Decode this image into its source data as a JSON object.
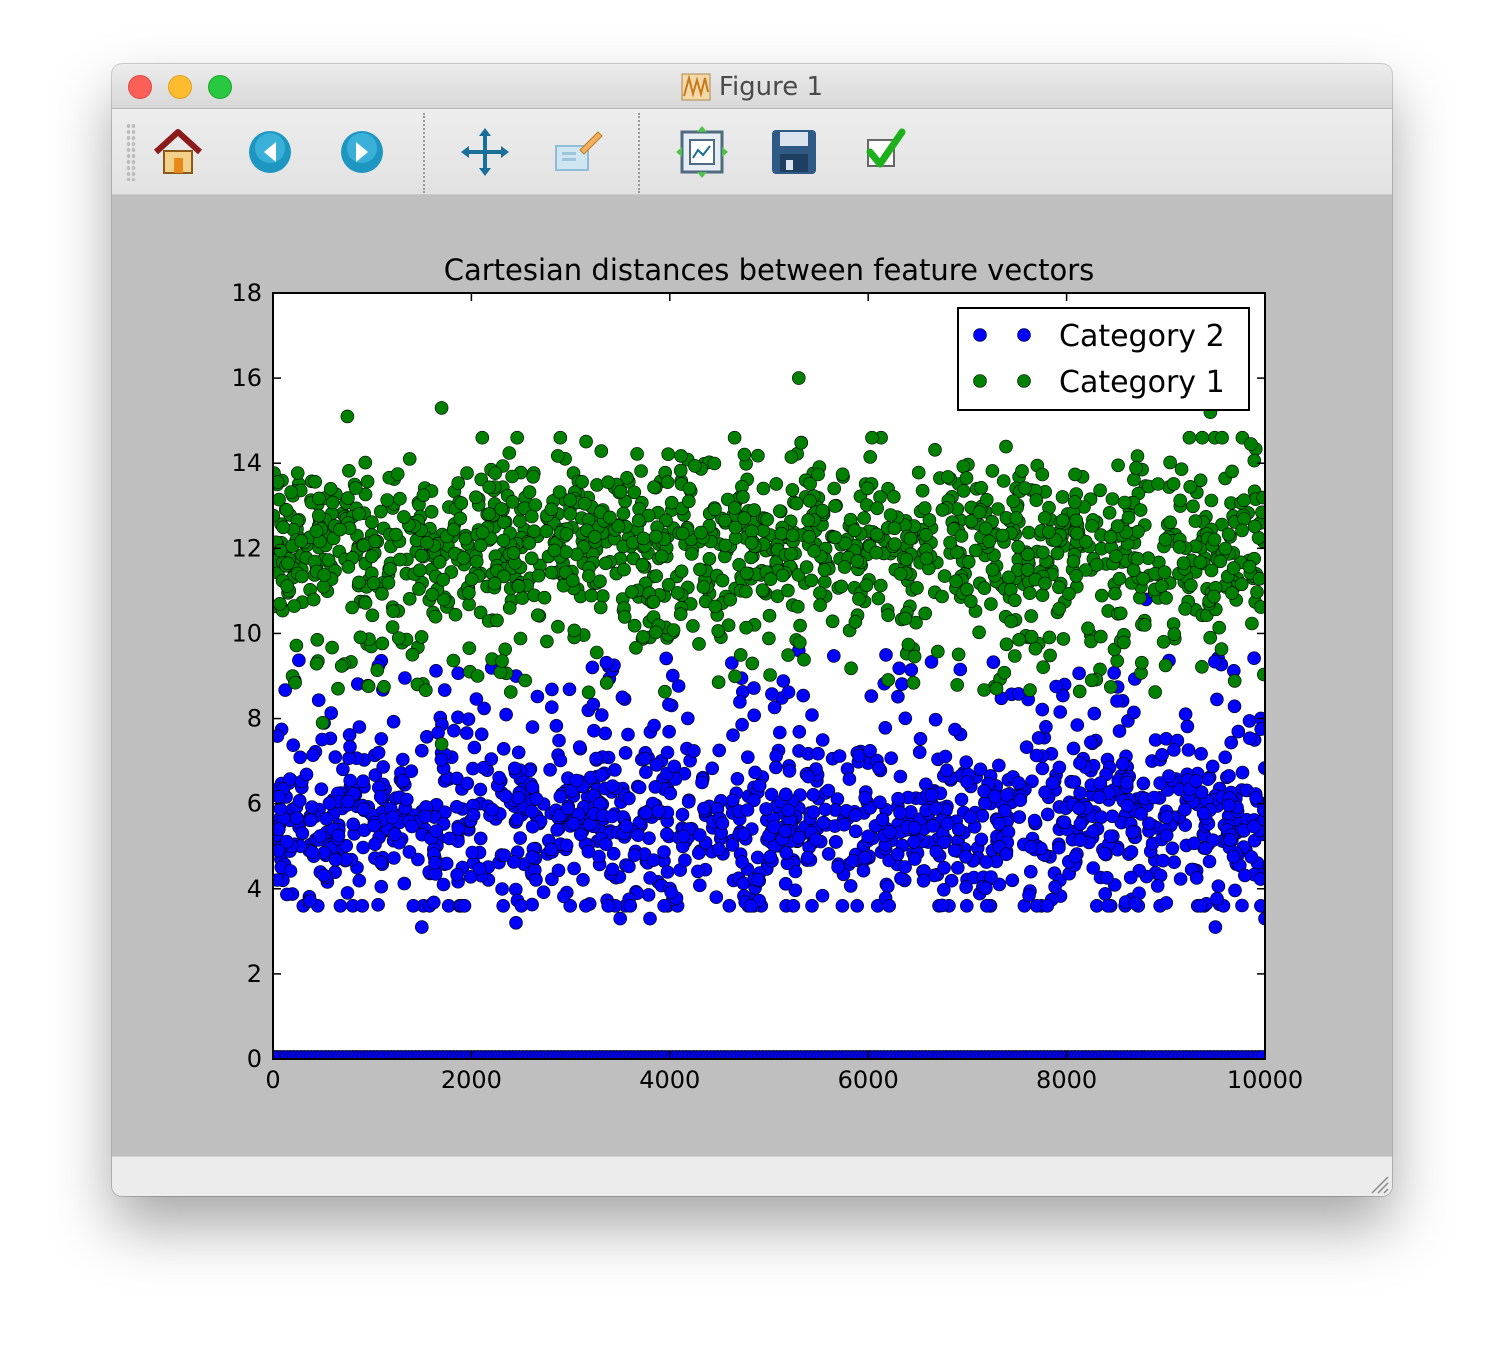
{
  "window": {
    "title": "Figure 1"
  },
  "toolbar": {
    "buttons": [
      {
        "name": "home-button",
        "icon": "home-icon"
      },
      {
        "name": "back-button",
        "icon": "back-arrow-icon"
      },
      {
        "name": "forward-button",
        "icon": "forward-arrow-icon"
      },
      {
        "name": "pan-button",
        "icon": "pan-arrows-icon"
      },
      {
        "name": "zoom-button",
        "icon": "zoom-rect-icon"
      },
      {
        "name": "subplots-button",
        "icon": "subplots-icon"
      },
      {
        "name": "save-button",
        "icon": "floppy-disk-icon"
      },
      {
        "name": "edit-parameters-button",
        "icon": "checkmark-icon"
      }
    ]
  },
  "chart_data": {
    "type": "scatter",
    "title": "Cartesian distances between feature vectors",
    "xlabel": "",
    "ylabel": "",
    "xlim": [
      0,
      10000
    ],
    "ylim": [
      0,
      18
    ],
    "x_ticks": [
      0,
      2000,
      4000,
      6000,
      8000,
      10000
    ],
    "y_ticks": [
      0,
      2,
      4,
      6,
      8,
      10,
      12,
      14,
      16,
      18
    ],
    "grid": false,
    "legend_position": "top-right",
    "legend": [
      "Category 2",
      "Category 1"
    ],
    "series": [
      {
        "name": "Category 2",
        "color": "#0000ff",
        "description_points": [
          {
            "x": 1500,
            "y": 3.1
          },
          {
            "x": 2450,
            "y": 3.2
          },
          {
            "x": 3500,
            "y": 3.3
          },
          {
            "x": 3800,
            "y": 3.3
          },
          {
            "x": 9500,
            "y": 3.1
          },
          {
            "x": 10000,
            "y": 3.3
          },
          {
            "x": 5300,
            "y": 9.6
          },
          {
            "x": 8800,
            "y": 10.8
          },
          {
            "x": 0,
            "y": 0.05
          }
        ],
        "band_y_range": [
          3.5,
          9.5
        ],
        "zero_line_y": 0.05
      },
      {
        "name": "Category 1",
        "color": "#008000",
        "description_points": [
          {
            "x": 5300,
            "y": 16.0
          },
          {
            "x": 750,
            "y": 15.1
          },
          {
            "x": 1700,
            "y": 15.3
          },
          {
            "x": 9450,
            "y": 15.2
          },
          {
            "x": 1700,
            "y": 7.4
          },
          {
            "x": 500,
            "y": 7.9
          }
        ],
        "band_y_range": [
          8.5,
          14.5
        ]
      }
    ]
  }
}
